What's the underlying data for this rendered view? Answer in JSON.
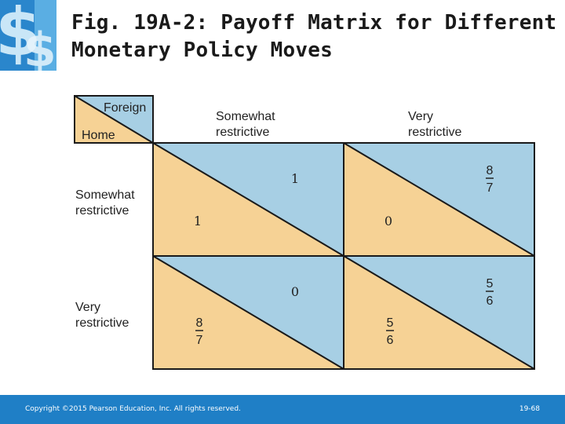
{
  "title": {
    "line1": "Fig. 19A-2: Payoff Matrix for Different",
    "line2": "Monetary Policy Moves"
  },
  "matrix": {
    "corner": {
      "column_player": "Foreign",
      "row_player": "Home"
    },
    "columns": [
      [
        "Somewhat",
        "restrictive"
      ],
      [
        "Very",
        "restrictive"
      ]
    ],
    "rows": [
      [
        "Somewhat",
        "restrictive"
      ],
      [
        "Very",
        "restrictive"
      ]
    ],
    "cells": [
      [
        {
          "foreign": {
            "type": "int",
            "value": "1"
          },
          "home": {
            "type": "int",
            "value": "1"
          }
        },
        {
          "foreign": {
            "type": "frac",
            "num": "8",
            "den": "7"
          },
          "home": {
            "type": "int",
            "value": "0"
          }
        }
      ],
      [
        {
          "foreign": {
            "type": "int",
            "value": "0"
          },
          "home": {
            "type": "frac",
            "num": "8",
            "den": "7"
          }
        },
        {
          "foreign": {
            "type": "frac",
            "num": "5",
            "den": "6"
          },
          "home": {
            "type": "frac",
            "num": "5",
            "den": "6"
          }
        }
      ]
    ],
    "colors": {
      "home": "#f6d295",
      "foreign": "#a7cfe4",
      "line": "#1a1a1a"
    }
  },
  "logo": {
    "icon": "dollar-sign-icon",
    "colors": [
      "#1f7fc6",
      "#6db3e2"
    ]
  },
  "footer": {
    "copyright": "Copyright ©2015 Pearson Education, Inc. All rights reserved.",
    "page": "19-68"
  }
}
